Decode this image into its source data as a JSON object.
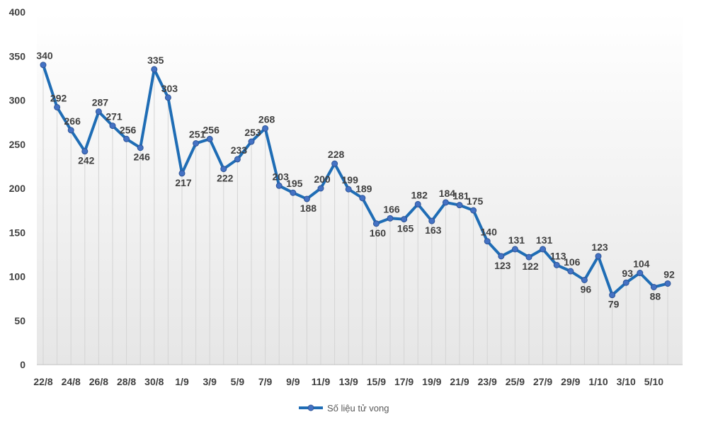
{
  "chart_data": {
    "type": "line",
    "title": "",
    "xlabel": "",
    "ylabel": "",
    "ylim": [
      0,
      400
    ],
    "yticks": [
      0,
      50,
      100,
      150,
      200,
      250,
      300,
      350,
      400
    ],
    "x": [
      "22/8",
      "23/8",
      "24/8",
      "25/8",
      "26/8",
      "27/8",
      "28/8",
      "29/8",
      "30/8",
      "31/8",
      "1/9",
      "2/9",
      "3/9",
      "4/9",
      "5/9",
      "6/9",
      "7/9",
      "8/9",
      "9/9",
      "10/9",
      "11/9",
      "12/9",
      "13/9",
      "14/9",
      "15/9",
      "16/9",
      "17/9",
      "18/9",
      "19/9",
      "20/9",
      "21/9",
      "22/9",
      "23/9",
      "24/9",
      "25/9",
      "26/9",
      "27/9",
      "28/9",
      "29/9",
      "30/9",
      "1/10",
      "2/10",
      "3/10",
      "4/10",
      "5/10",
      "6/10"
    ],
    "x_tick_labels": [
      "22/8",
      "24/8",
      "26/8",
      "28/8",
      "30/8",
      "1/9",
      "3/9",
      "5/9",
      "7/9",
      "9/9",
      "11/9",
      "13/9",
      "15/9",
      "17/9",
      "19/9",
      "21/9",
      "23/9",
      "25/9",
      "27/9",
      "29/9",
      "1/10",
      "3/10",
      "5/10"
    ],
    "series": [
      {
        "name": "Số liệu tử vong",
        "values": [
          340,
          292,
          266,
          242,
          287,
          271,
          256,
          246,
          335,
          303,
          217,
          251,
          256,
          222,
          233,
          253,
          268,
          203,
          195,
          188,
          200,
          228,
          199,
          189,
          160,
          166,
          165,
          182,
          163,
          184,
          181,
          175,
          140,
          123,
          131,
          122,
          131,
          113,
          106,
          96,
          123,
          79,
          93,
          104,
          88,
          92
        ],
        "color": "#1f6db5"
      }
    ],
    "grid": "vertical",
    "legend": "bottom-center"
  }
}
